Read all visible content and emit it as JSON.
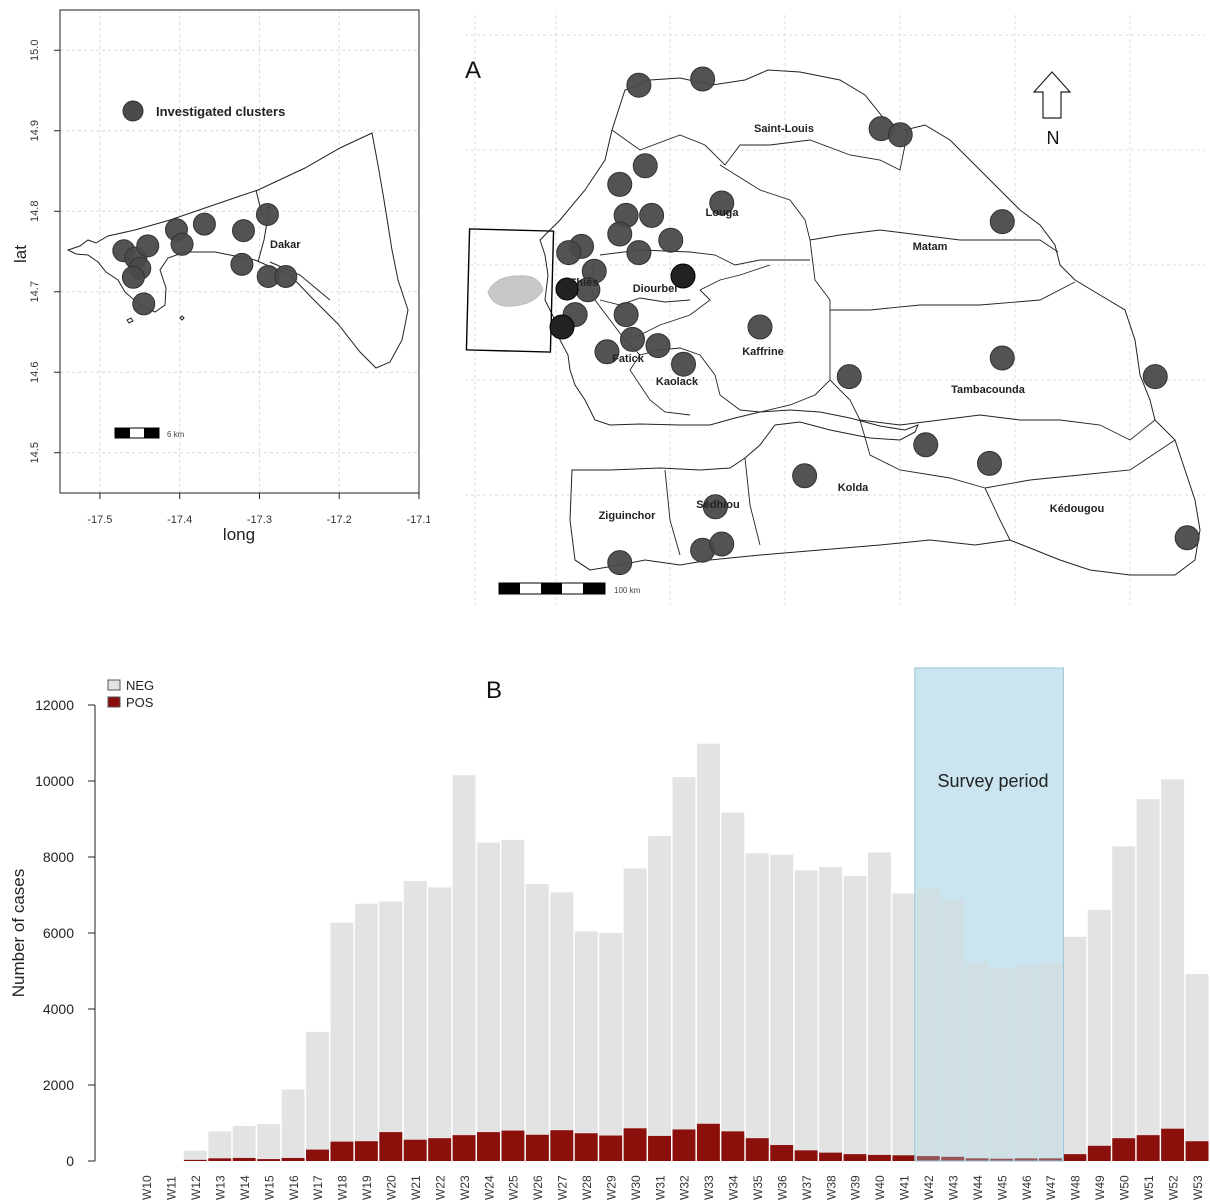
{
  "chart_data": [
    {
      "type": "scatter",
      "panel": "inset",
      "xlabel": "long",
      "ylabel": "lat",
      "xlim": [
        -17.55,
        -17.1
      ],
      "ylim": [
        14.45,
        15.05
      ],
      "x_ticks": [
        "-17.5",
        "-17.4",
        "-17.3",
        "-17.2",
        "-17.1"
      ],
      "y_ticks": [
        "14.5",
        "14.6",
        "14.7",
        "14.8",
        "14.9",
        "15.0"
      ],
      "legend": {
        "label": "Investigated clusters",
        "placement": "top-left"
      },
      "region_label": "Dakar",
      "scale_label": "6 km",
      "grid": true,
      "marker_color": "#4a4a4a",
      "points": [
        {
          "x": -17.47,
          "y": 14.751
        },
        {
          "x": -17.455,
          "y": 14.742
        },
        {
          "x": -17.44,
          "y": 14.757
        },
        {
          "x": -17.45,
          "y": 14.729
        },
        {
          "x": -17.458,
          "y": 14.718
        },
        {
          "x": -17.445,
          "y": 14.685
        },
        {
          "x": -17.404,
          "y": 14.777
        },
        {
          "x": -17.397,
          "y": 14.759
        },
        {
          "x": -17.369,
          "y": 14.784
        },
        {
          "x": -17.32,
          "y": 14.776
        },
        {
          "x": -17.29,
          "y": 14.796
        },
        {
          "x": -17.322,
          "y": 14.734
        },
        {
          "x": -17.289,
          "y": 14.719
        },
        {
          "x": -17.267,
          "y": 14.719
        }
      ]
    },
    {
      "type": "scatter",
      "panel": "main",
      "panel_label": "A",
      "north_label": "N",
      "scale_label": "100 km",
      "grid": true,
      "marker_color": "#4a4a4a",
      "regions": [
        "Saint-Louis",
        "Louga",
        "Matam",
        "Thiès",
        "Diourbel",
        "Fatick",
        "Kaolack",
        "Kaffrine",
        "Tambacounda",
        "Ziguinchor",
        "Sédhiou",
        "Kolda",
        "Kédougou"
      ],
      "points": [
        {
          "x": -16.55,
          "y": 16.45
        },
        {
          "x": -16.05,
          "y": 16.5
        },
        {
          "x": -14.65,
          "y": 16.1
        },
        {
          "x": -14.5,
          "y": 16.05
        },
        {
          "x": -15.9,
          "y": 15.5
        },
        {
          "x": -16.5,
          "y": 15.8
        },
        {
          "x": -16.7,
          "y": 15.65
        },
        {
          "x": -13.7,
          "y": 15.35
        },
        {
          "x": -17.0,
          "y": 15.15
        },
        {
          "x": -17.1,
          "y": 15.1
        },
        {
          "x": -16.65,
          "y": 15.4
        },
        {
          "x": -16.45,
          "y": 15.4
        },
        {
          "x": -16.7,
          "y": 15.25
        },
        {
          "x": -16.3,
          "y": 15.2
        },
        {
          "x": -16.55,
          "y": 15.1
        },
        {
          "x": -16.9,
          "y": 14.95
        },
        {
          "x": -16.95,
          "y": 14.8
        },
        {
          "x": -16.65,
          "y": 14.6
        },
        {
          "x": -16.6,
          "y": 14.4
        },
        {
          "x": -16.4,
          "y": 14.35
        },
        {
          "x": -15.6,
          "y": 14.5
        },
        {
          "x": -17.05,
          "y": 14.6
        },
        {
          "x": -16.8,
          "y": 14.3
        },
        {
          "x": -16.2,
          "y": 14.2
        },
        {
          "x": -14.9,
          "y": 14.1
        },
        {
          "x": -13.7,
          "y": 14.25
        },
        {
          "x": -12.5,
          "y": 14.1
        },
        {
          "x": -14.3,
          "y": 13.55
        },
        {
          "x": -13.8,
          "y": 13.4
        },
        {
          "x": -15.25,
          "y": 13.3
        },
        {
          "x": -15.95,
          "y": 13.05
        },
        {
          "x": -16.05,
          "y": 12.7
        },
        {
          "x": -15.9,
          "y": 12.75
        },
        {
          "x": -16.7,
          "y": 12.6
        },
        {
          "x": -12.25,
          "y": 12.8
        }
      ]
    },
    {
      "type": "bar",
      "panel_label": "B",
      "ylabel": "Number of cases",
      "ylim": [
        0,
        12000
      ],
      "y_ticks": [
        0,
        2000,
        4000,
        6000,
        8000,
        10000,
        12000
      ],
      "stacked": false,
      "legend_placement": "top-left",
      "annotation": {
        "label": "Survey period",
        "start": "W42",
        "end": "W47",
        "color": "#add8e6"
      },
      "categories": [
        "W10",
        "W11",
        "W12",
        "W13",
        "W14",
        "W15",
        "W16",
        "W17",
        "W18",
        "W19",
        "W20",
        "W21",
        "W22",
        "W23",
        "W24",
        "W25",
        "W26",
        "W27",
        "W28",
        "W29",
        "W30",
        "W31",
        "W32",
        "W33",
        "W34",
        "W35",
        "W36",
        "W37",
        "W38",
        "W39",
        "W40",
        "W41",
        "W42",
        "W43",
        "W44",
        "W45",
        "W46",
        "W47",
        "W48",
        "W49",
        "W50",
        "W51",
        "W52",
        "W53"
      ],
      "series": [
        {
          "name": "NEG",
          "color": "#e3e3e3",
          "values": [
            0,
            0,
            270,
            780,
            920,
            970,
            1880,
            3400,
            6270,
            6770,
            6830,
            7370,
            7200,
            10150,
            8380,
            8450,
            7290,
            7070,
            6040,
            6000,
            7700,
            8550,
            10100,
            10980,
            9170,
            8100,
            8060,
            7650,
            7740,
            7500,
            8120,
            7040,
            7160,
            6880,
            5220,
            5080,
            5150,
            5200,
            5900,
            6610,
            8280,
            9520,
            10040,
            4920
          ]
        },
        {
          "name": "POS",
          "color": "#8b0f0a",
          "values": [
            0,
            0,
            30,
            70,
            80,
            50,
            80,
            300,
            510,
            520,
            760,
            560,
            600,
            680,
            760,
            800,
            690,
            810,
            730,
            670,
            860,
            660,
            830,
            980,
            780,
            600,
            420,
            280,
            220,
            180,
            160,
            150,
            130,
            110,
            70,
            60,
            70,
            70,
            180,
            400,
            600,
            680,
            850,
            520
          ]
        }
      ]
    }
  ]
}
